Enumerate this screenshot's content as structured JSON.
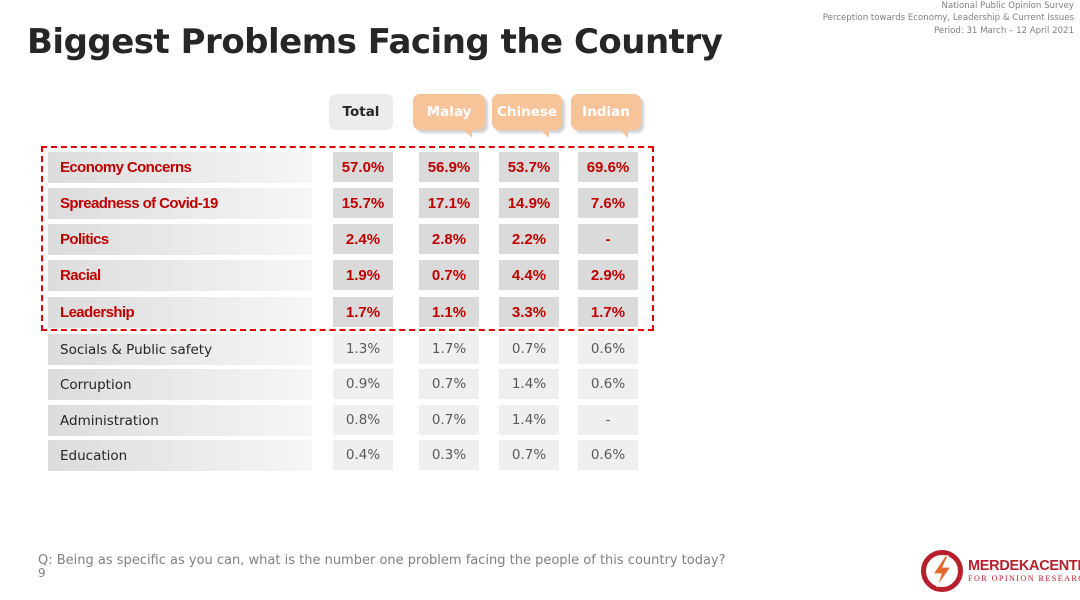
{
  "header": {
    "survey": "National Public Opinion Survey",
    "topic": "Perception towards Economy, Leadership & Current Issues",
    "period": "Period: 31 March – 12 April 2021"
  },
  "title": "Biggest Problems Facing the Country",
  "chart_data": {
    "type": "table",
    "title": "Biggest Problems Facing the Country",
    "columns": [
      "Total",
      "Malay",
      "Chinese",
      "Indian"
    ],
    "unit": "%",
    "highlighted_rows": 5,
    "rows": [
      {
        "label": "Economy Concerns",
        "values": [
          "57.0%",
          "56.9%",
          "53.7%",
          "69.6%"
        ]
      },
      {
        "label": "Spreadness of Covid-19",
        "values": [
          "15.7%",
          "17.1%",
          "14.9%",
          "7.6%"
        ]
      },
      {
        "label": "Politics",
        "values": [
          "2.4%",
          "2.8%",
          "2.2%",
          "-"
        ]
      },
      {
        "label": "Racial",
        "values": [
          "1.9%",
          "0.7%",
          "4.4%",
          "2.9%"
        ]
      },
      {
        "label": "Leadership",
        "values": [
          "1.7%",
          "1.1%",
          "3.3%",
          "1.7%"
        ]
      },
      {
        "label": "Socials & Public safety",
        "values": [
          "1.3%",
          "1.7%",
          "0.7%",
          "0.6%"
        ]
      },
      {
        "label": "Corruption",
        "values": [
          "0.9%",
          "0.7%",
          "1.4%",
          "0.6%"
        ]
      },
      {
        "label": "Administration",
        "values": [
          "0.8%",
          "0.7%",
          "1.4%",
          "-"
        ]
      },
      {
        "label": "Education",
        "values": [
          "0.4%",
          "0.3%",
          "0.7%",
          "0.6%"
        ]
      }
    ]
  },
  "footer": {
    "question": "Q:  Being as specific as you can, what is the number one problem facing the people of this country today?",
    "page_number": "9"
  },
  "logo": {
    "name": "MERDEKACENTER",
    "subtitle": "FOR OPINION RESEARCH",
    "icon": "merdeka-center-logo-icon"
  },
  "colors": {
    "highlight_text": "#c00000",
    "highlight_border": "#e00000",
    "group_header": "#f7c398",
    "brand": "#b81f2c"
  }
}
